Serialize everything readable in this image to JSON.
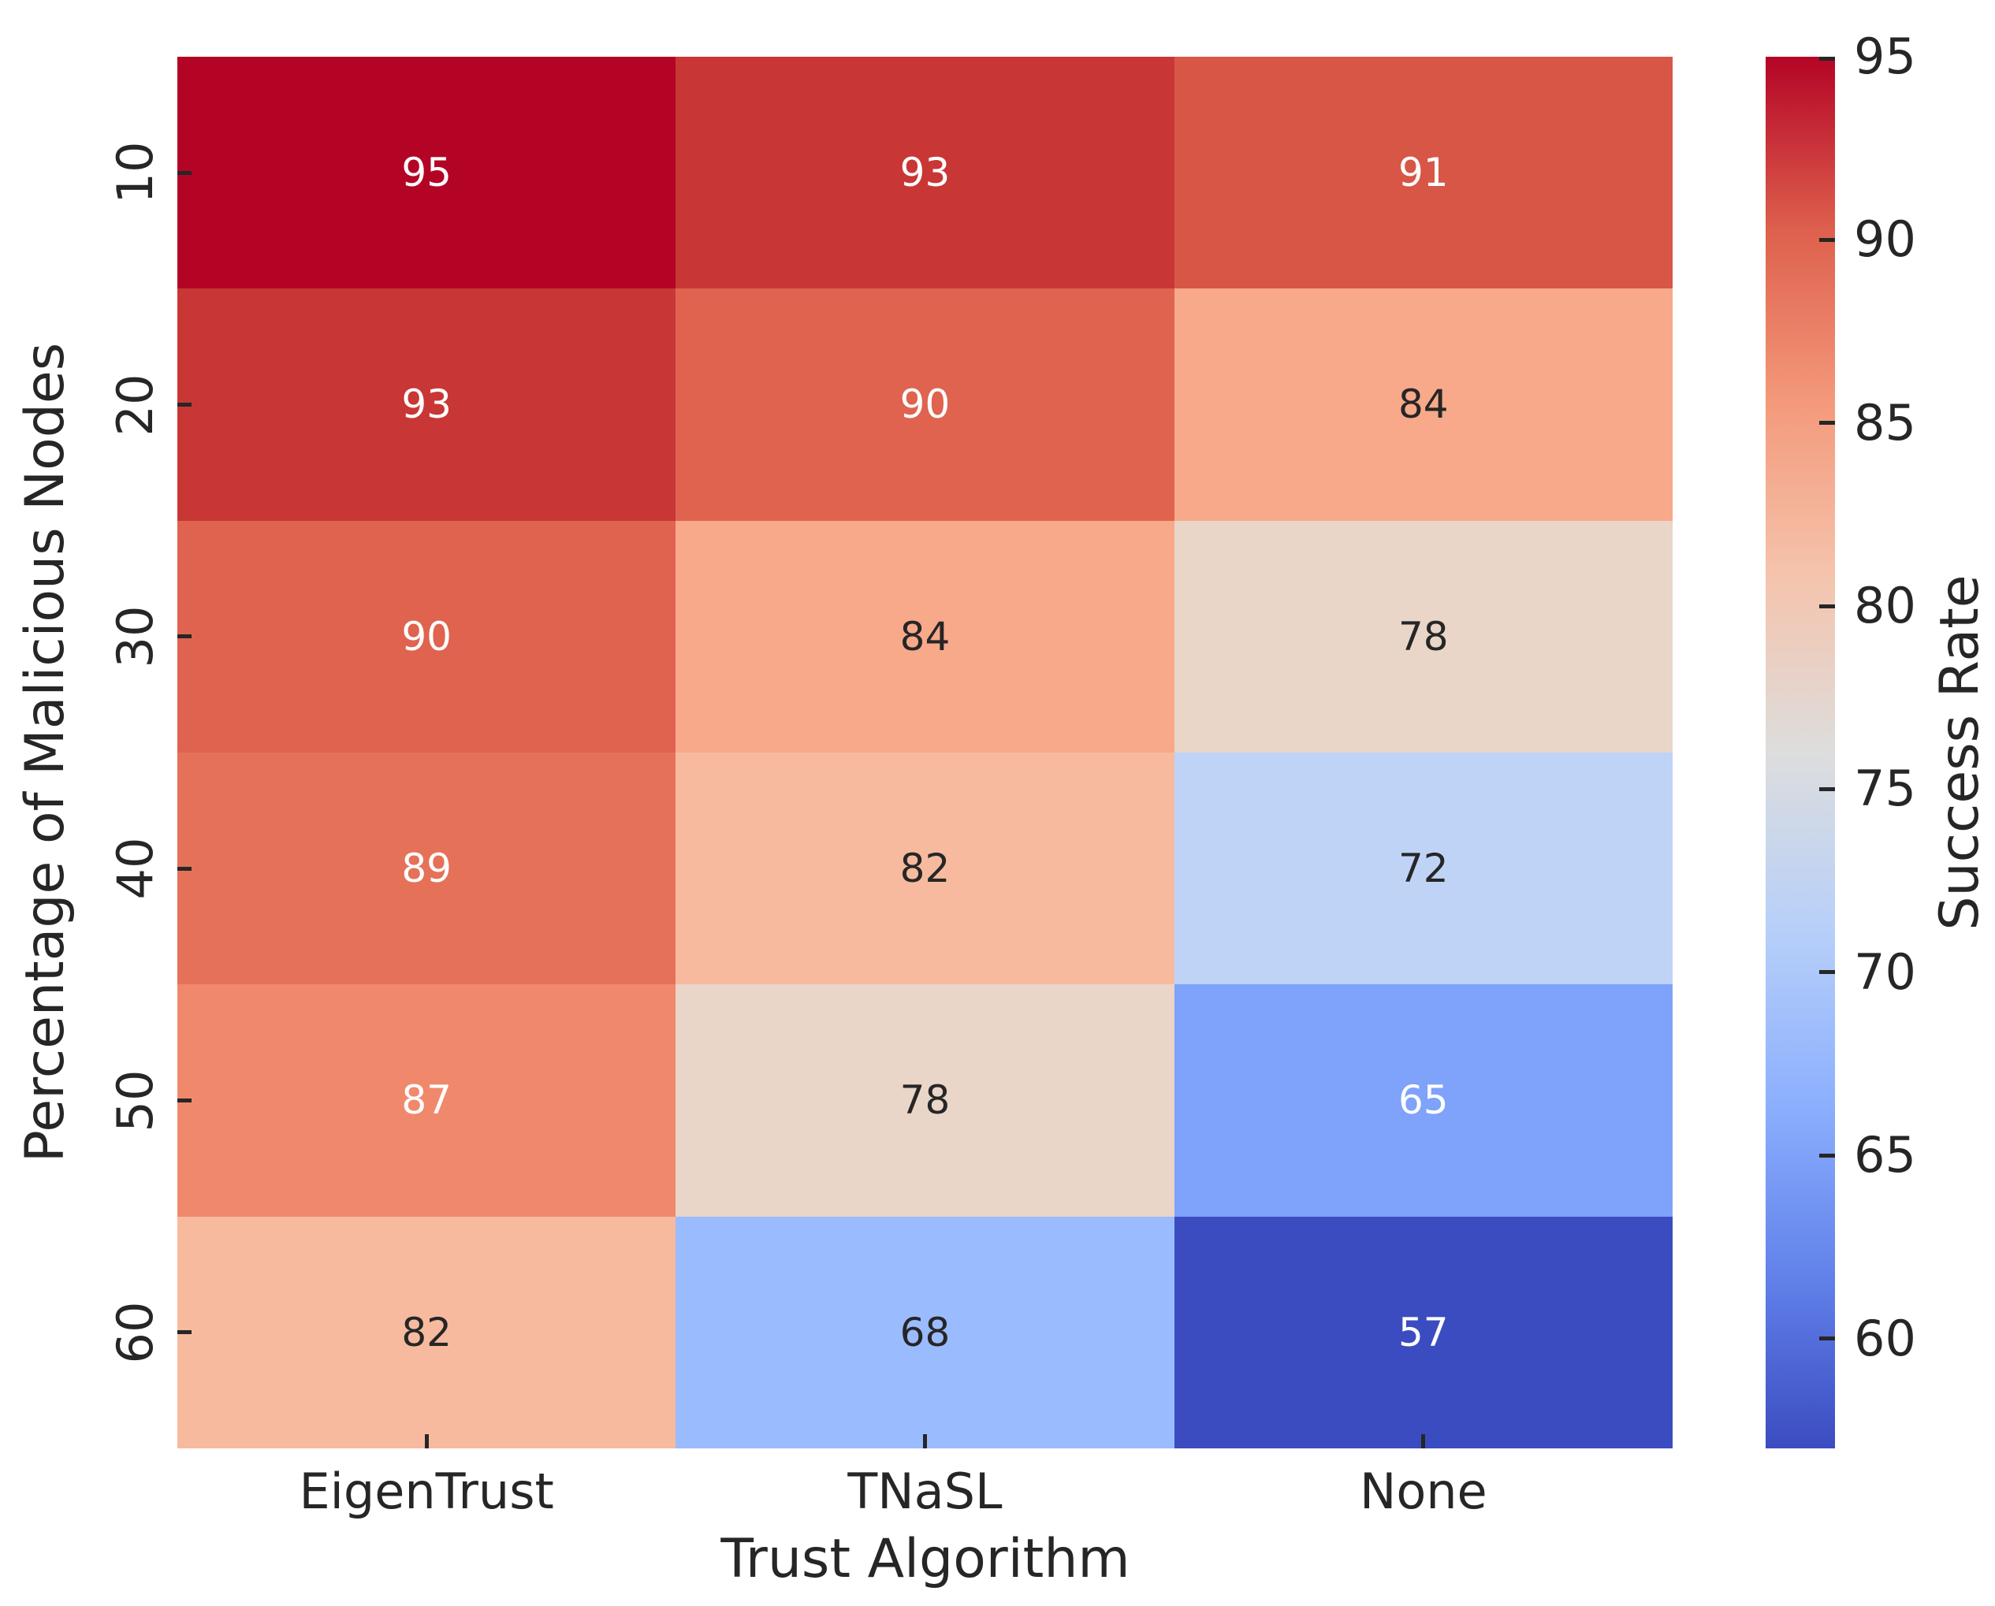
{
  "chart_data": {
    "type": "heatmap",
    "title": "",
    "xlabel": "Trust Algorithm",
    "ylabel": "Percentage of Malicious Nodes",
    "x_categories": [
      "EigenTrust",
      "TNaSL",
      "None"
    ],
    "y_categories": [
      "10",
      "20",
      "30",
      "40",
      "50",
      "60"
    ],
    "values": [
      [
        95,
        93,
        91
      ],
      [
        93,
        90,
        84
      ],
      [
        90,
        84,
        78
      ],
      [
        89,
        82,
        72
      ],
      [
        87,
        78,
        65
      ],
      [
        82,
        68,
        57
      ]
    ],
    "cell_colors": [
      [
        "#b40426",
        "#c83735",
        "#d85646"
      ],
      [
        "#c83735",
        "#df634f",
        "#f7a98a"
      ],
      [
        "#df634f",
        "#f7a98a",
        "#ead5c9"
      ],
      [
        "#e57159",
        "#f7ba9f",
        "#bed3f6"
      ],
      [
        "#f0896c",
        "#ead5c9",
        "#7fa2fa"
      ],
      [
        "#f7ba9f",
        "#9bbbff",
        "#3b4cc0"
      ]
    ],
    "annotation_colors": [
      [
        "#ffffff",
        "#ffffff",
        "#ffffff"
      ],
      [
        "#ffffff",
        "#ffffff",
        "#262626"
      ],
      [
        "#ffffff",
        "#262626",
        "#262626"
      ],
      [
        "#ffffff",
        "#262626",
        "#262626"
      ],
      [
        "#ffffff",
        "#262626",
        "#ffffff"
      ],
      [
        "#262626",
        "#262626",
        "#ffffff"
      ]
    ],
    "colormap": "coolwarm",
    "vmin": 57,
    "vmax": 95,
    "grid": false,
    "tick_color": "#262626",
    "text_color": "#262626",
    "colorbar": {
      "label": "Success Rate",
      "ticks": [
        95,
        90,
        85,
        80,
        75,
        70,
        65,
        60
      ],
      "gradient_stops": [
        {
          "pos": 0,
          "color": "#b40426"
        },
        {
          "pos": 12.5,
          "color": "#de604d"
        },
        {
          "pos": 25,
          "color": "#f49a7b"
        },
        {
          "pos": 37.5,
          "color": "#f5c4ad"
        },
        {
          "pos": 50,
          "color": "#dddddd"
        },
        {
          "pos": 62.5,
          "color": "#b8d0f9"
        },
        {
          "pos": 75,
          "color": "#8db0fe"
        },
        {
          "pos": 87.5,
          "color": "#6282ea"
        },
        {
          "pos": 100,
          "color": "#3b4cc0"
        }
      ]
    }
  }
}
